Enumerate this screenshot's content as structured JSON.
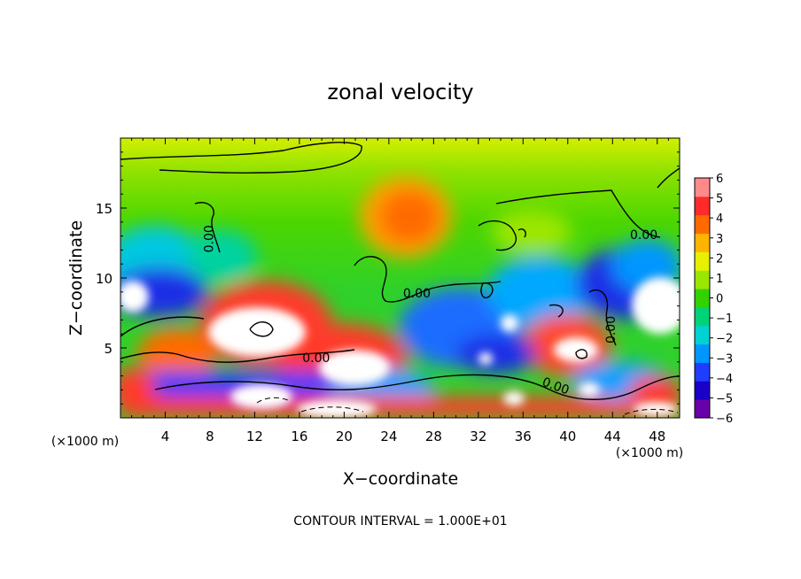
{
  "chart_data": {
    "type": "heatmap",
    "title": "zonal velocity",
    "xlabel": "X−coordinate",
    "ylabel": "Z−coordinate",
    "x_unit_label": "(×1000 m)",
    "y_unit_label": "(×1000 m)",
    "footer": "CONTOUR INTERVAL = 1.000E+01",
    "xlim": [
      0,
      50
    ],
    "ylim": [
      0,
      20
    ],
    "x_ticks": [
      4,
      8,
      12,
      16,
      20,
      24,
      28,
      32,
      36,
      40,
      44,
      48
    ],
    "y_ticks": [
      5,
      10,
      15
    ],
    "colorbar": {
      "min": -6,
      "max": 6,
      "tick_labels": [
        "6",
        "5",
        "4",
        "3",
        "2",
        "1",
        "0",
        "−1",
        "−2",
        "−3",
        "−4",
        "−5",
        "−6"
      ],
      "colors": [
        "#6a00a8",
        "#1a00c8",
        "#1f3cff",
        "#0096ff",
        "#00d2d2",
        "#00d27a",
        "#32d200",
        "#9be600",
        "#e6f000",
        "#ffb400",
        "#ff6a00",
        "#ff2a2a",
        "#ff8a8a"
      ]
    },
    "contour_labels": [
      {
        "text": "0.00",
        "x": 17.5,
        "z": 4.0,
        "rotate": 0
      },
      {
        "text": "0.00",
        "x": 26.5,
        "z": 8.6,
        "rotate": 0
      },
      {
        "text": "0.00",
        "x": 38.8,
        "z": 2.0,
        "rotate": 20
      },
      {
        "text": "0.00",
        "x": 8.3,
        "z": 12.8,
        "rotate": -90
      },
      {
        "text": "0.00",
        "x": 46.8,
        "z": 12.8,
        "rotate": 0
      },
      {
        "text": "0.00",
        "x": 44.2,
        "z": 6.3,
        "rotate": -90
      }
    ],
    "grid": false,
    "legend": "colorbar-right"
  }
}
